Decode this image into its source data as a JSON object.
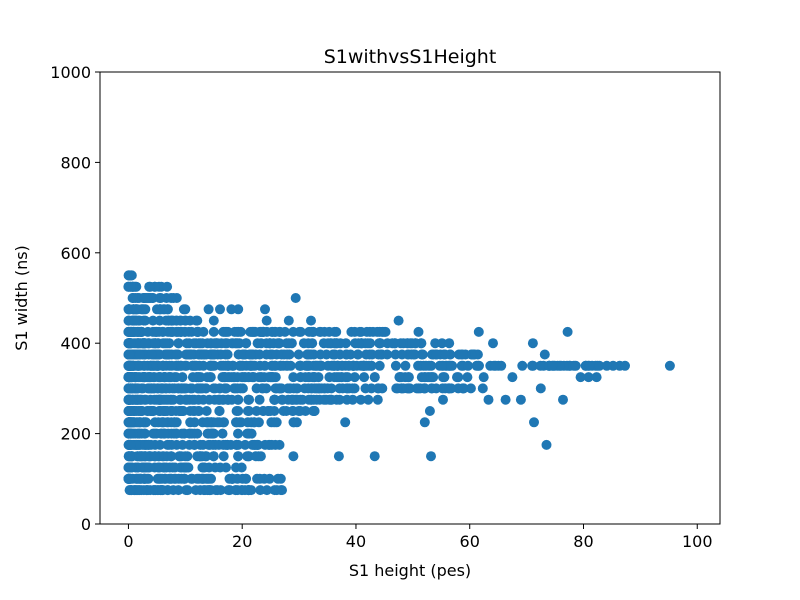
{
  "chart_data": {
    "type": "scatter",
    "title": "S1withvsS1Height",
    "xlabel": "S1 height (pes)",
    "ylabel": "S1 width (ns)",
    "xlim": [
      -5,
      104
    ],
    "ylim": [
      0,
      1000
    ],
    "xticks": [
      0,
      20,
      40,
      60,
      80,
      100
    ],
    "yticks": [
      0,
      200,
      400,
      600,
      800,
      1000
    ],
    "grid": false,
    "legend": "none",
    "marker_color": "#1f77b4",
    "y_levels_ns": [
      75,
      100,
      125,
      150,
      175,
      200,
      225,
      250,
      275,
      300,
      325,
      350,
      375,
      400,
      425,
      450,
      475,
      500,
      525,
      550
    ],
    "x_extent_by_level": [
      {
        "y": 75,
        "xmax": 27
      },
      {
        "y": 100,
        "xmax": 27
      },
      {
        "y": 125,
        "xmax": 20
      },
      {
        "y": 150,
        "xmax": 24
      },
      {
        "y": 175,
        "xmax": 27
      },
      {
        "y": 200,
        "xmax": 22
      },
      {
        "y": 225,
        "xmax": 30
      },
      {
        "y": 250,
        "xmax": 35
      },
      {
        "y": 275,
        "xmax": 44
      },
      {
        "y": 300,
        "xmax": 60
      },
      {
        "y": 325,
        "xmax": 65
      },
      {
        "y": 350,
        "xmax": 87
      },
      {
        "y": 375,
        "xmax": 65
      },
      {
        "y": 400,
        "xmax": 57
      },
      {
        "y": 425,
        "xmax": 45
      },
      {
        "y": 450,
        "xmax": 12
      },
      {
        "y": 475,
        "xmax": 10
      },
      {
        "y": 500,
        "xmax": 8
      },
      {
        "y": 525,
        "xmax": 7
      },
      {
        "y": 550,
        "xmax": 1
      }
    ],
    "points": [
      [
        95.2,
        350
      ],
      [
        87.3,
        350
      ],
      [
        85.2,
        350
      ],
      [
        84.1,
        350
      ],
      [
        82.3,
        325
      ],
      [
        81.0,
        350
      ],
      [
        80.9,
        325
      ],
      [
        79.5,
        325
      ],
      [
        77.2,
        425
      ],
      [
        76.4,
        275
      ],
      [
        75.8,
        350
      ],
      [
        74.5,
        350
      ],
      [
        73.5,
        175
      ],
      [
        73.2,
        375
      ],
      [
        72.5,
        300
      ],
      [
        71.3,
        225
      ],
      [
        71.1,
        400
      ],
      [
        69.0,
        275
      ],
      [
        67.5,
        325
      ],
      [
        66.3,
        275
      ],
      [
        64.1,
        400
      ],
      [
        63.3,
        275
      ],
      [
        62.3,
        300
      ],
      [
        61.6,
        425
      ],
      [
        60.2,
        300
      ],
      [
        58.8,
        300
      ],
      [
        58.0,
        325
      ],
      [
        56.4,
        400
      ],
      [
        55.3,
        275
      ],
      [
        54.1,
        375
      ],
      [
        53.2,
        150
      ],
      [
        53.0,
        250
      ],
      [
        52.1,
        225
      ],
      [
        51.0,
        425
      ],
      [
        50.4,
        400
      ],
      [
        49.3,
        325
      ],
      [
        48.1,
        375
      ],
      [
        47.5,
        450
      ],
      [
        47.1,
        300
      ],
      [
        46.4,
        400
      ],
      [
        45.2,
        425
      ],
      [
        44.3,
        400
      ],
      [
        43.3,
        150
      ],
      [
        42.1,
        400
      ],
      [
        41.5,
        350
      ],
      [
        40.3,
        375
      ],
      [
        39.2,
        425
      ],
      [
        38.1,
        225
      ],
      [
        37.0,
        150
      ],
      [
        36.2,
        350
      ],
      [
        35.3,
        425
      ],
      [
        34.4,
        275
      ],
      [
        33.3,
        350
      ],
      [
        32.1,
        450
      ],
      [
        31.2,
        350
      ],
      [
        30.3,
        425
      ],
      [
        29.4,
        500
      ],
      [
        29.0,
        150
      ],
      [
        28.2,
        450
      ],
      [
        27.0,
        75
      ],
      [
        26.3,
        100
      ],
      [
        26.1,
        75
      ],
      [
        25.2,
        175
      ],
      [
        24.3,
        450
      ],
      [
        24.0,
        475
      ],
      [
        23.1,
        100
      ],
      [
        22.4,
        150
      ],
      [
        21.2,
        75
      ],
      [
        20.5,
        75
      ],
      [
        19.3,
        475
      ],
      [
        18.1,
        475
      ],
      [
        17.2,
        425
      ],
      [
        16.1,
        475
      ],
      [
        15.0,
        450
      ],
      [
        14.1,
        475
      ],
      [
        13.0,
        125
      ],
      [
        12.1,
        450
      ],
      [
        11.0,
        375
      ],
      [
        10.0,
        475
      ],
      [
        9.1,
        450
      ],
      [
        8.5,
        500
      ],
      [
        7.5,
        500
      ],
      [
        6.8,
        525
      ],
      [
        6.6,
        450
      ],
      [
        5.5,
        475
      ],
      [
        5.0,
        425
      ],
      [
        4.1,
        375
      ],
      [
        3.0,
        400
      ],
      [
        2.0,
        375
      ],
      [
        1.4,
        475
      ],
      [
        1.1,
        450
      ],
      [
        0.8,
        500
      ],
      [
        0.5,
        550
      ],
      [
        0.4,
        525
      ],
      [
        0.3,
        425
      ],
      [
        0.2,
        75
      ],
      [
        0.2,
        100
      ],
      [
        0.3,
        125
      ],
      [
        0.2,
        150
      ],
      [
        0.4,
        175
      ],
      [
        0.3,
        200
      ],
      [
        0.3,
        225
      ],
      [
        0.2,
        250
      ],
      [
        0.3,
        275
      ],
      [
        0.4,
        300
      ],
      [
        0.2,
        325
      ],
      [
        0.3,
        350
      ],
      [
        0.2,
        375
      ],
      [
        0.4,
        400
      ]
    ]
  }
}
